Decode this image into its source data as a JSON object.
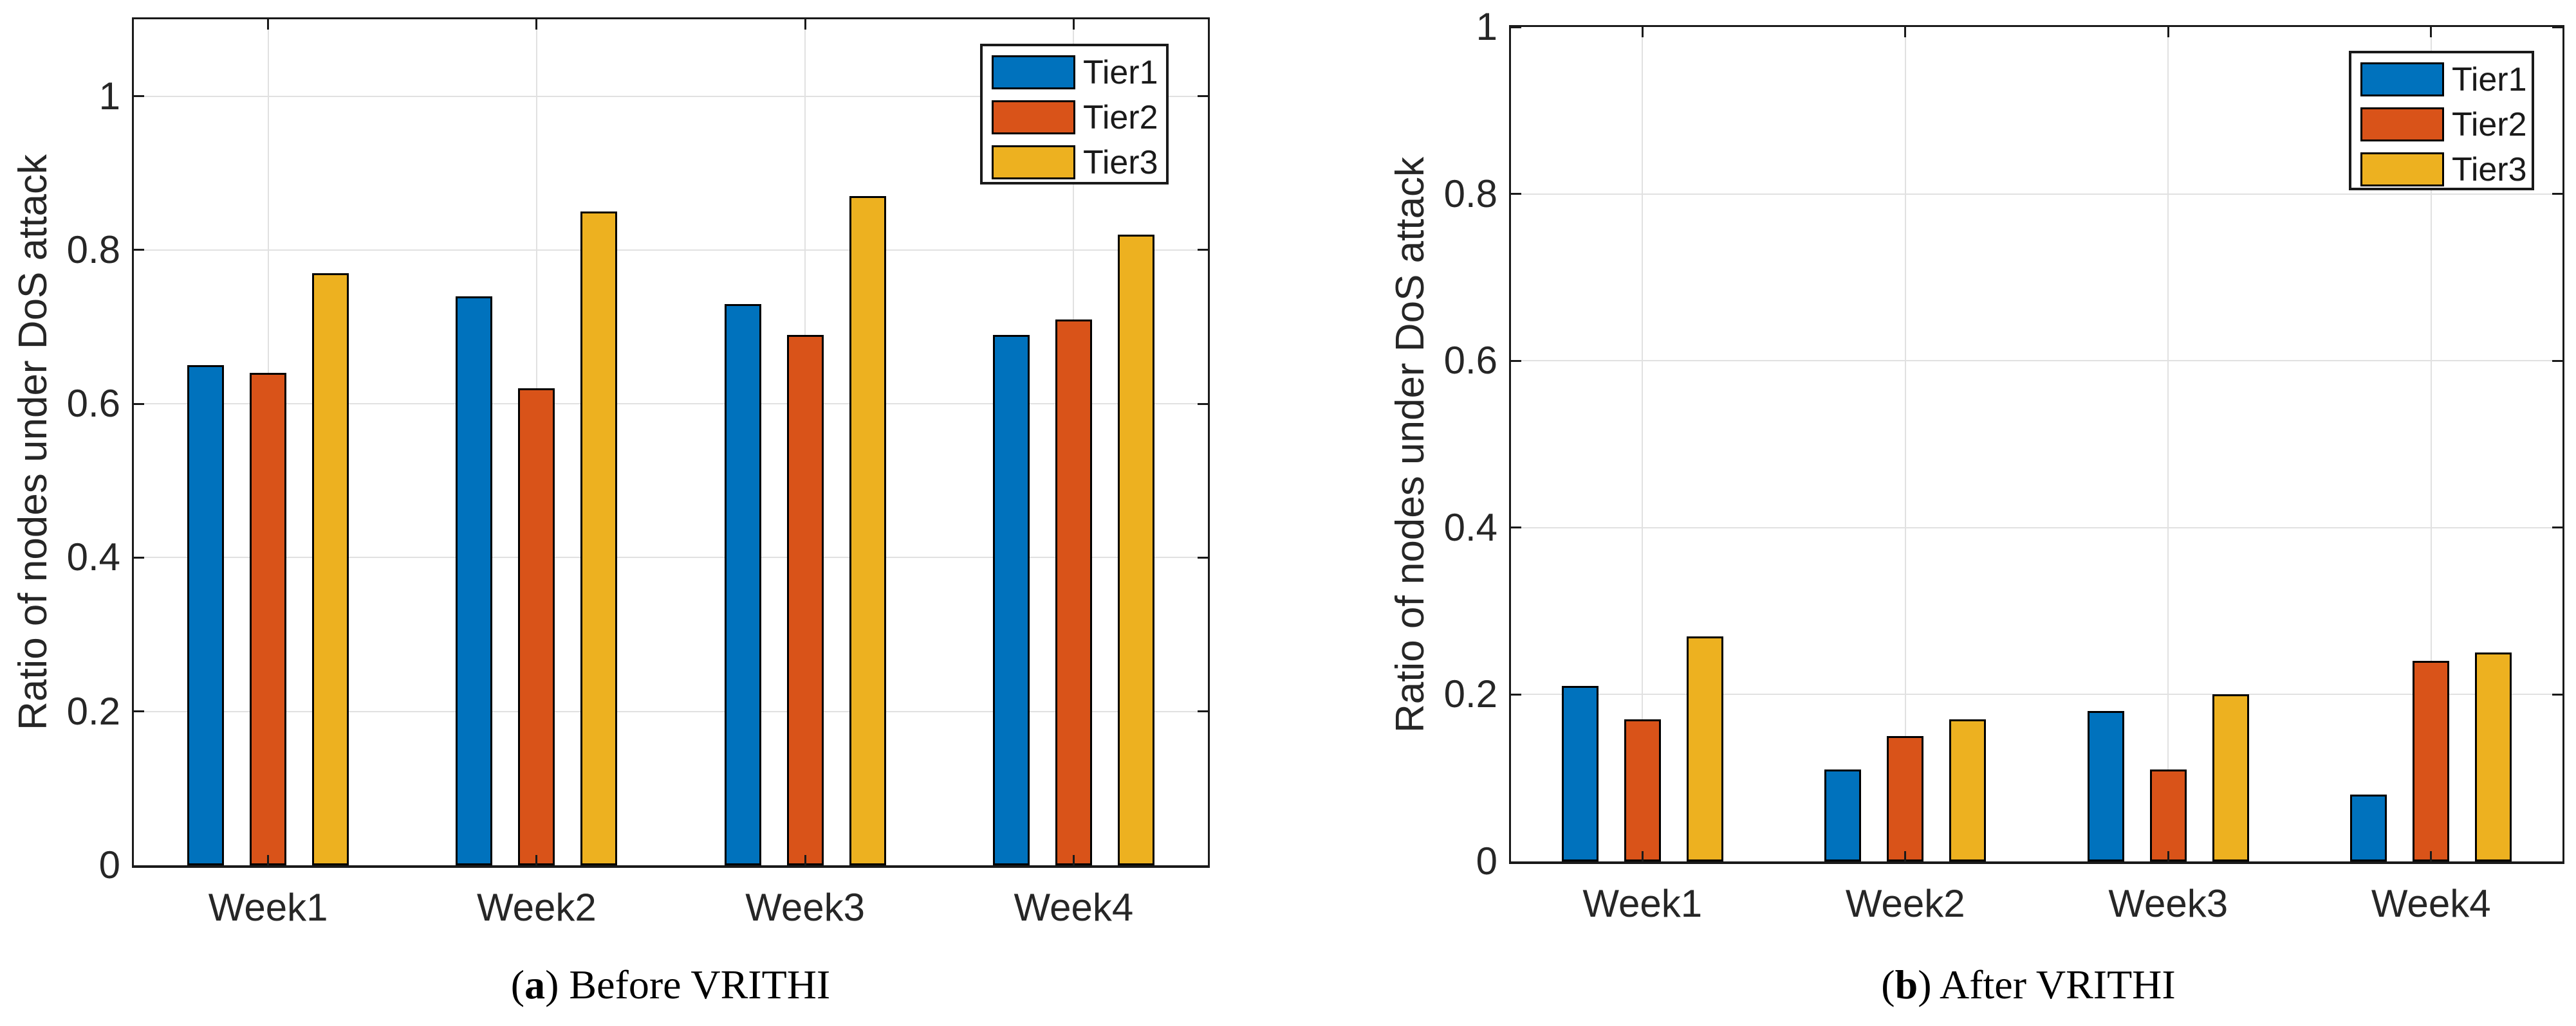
{
  "figure": {
    "background": "#ffffff",
    "axis_color": "#1a1a1a",
    "grid_color": "#e1e1e1",
    "tick_label_color": "#262626"
  },
  "chart_data": [
    {
      "id": "a",
      "type": "bar",
      "categories": [
        "Week1",
        "Week2",
        "Week3",
        "Week4"
      ],
      "series": [
        {
          "name": "Tier1",
          "color": "#0072BD",
          "values": [
            0.65,
            0.74,
            0.73,
            0.69
          ]
        },
        {
          "name": "Tier2",
          "color": "#D95319",
          "values": [
            0.64,
            0.62,
            0.69,
            0.71
          ]
        },
        {
          "name": "Tier3",
          "color": "#EDB120",
          "values": [
            0.77,
            0.85,
            0.87,
            0.82
          ]
        }
      ],
      "ylabel": "Ratio of nodes under DoS attack",
      "xlabel": "",
      "ylim": [
        0,
        1.1
      ],
      "yticks": [
        0,
        0.2,
        0.4,
        0.6,
        0.8,
        1
      ],
      "ytick_labels": [
        "0",
        "0.2",
        "0.4",
        "0.6",
        "0.8",
        "1"
      ],
      "grid": true,
      "legend": [
        "Tier1",
        "Tier2",
        "Tier3"
      ],
      "legend_position": "top-right",
      "caption": {
        "open": "(",
        "letter": "a",
        "close": ")",
        "text": "Before VRITHI"
      }
    },
    {
      "id": "b",
      "type": "bar",
      "categories": [
        "Week1",
        "Week2",
        "Week3",
        "Week4"
      ],
      "series": [
        {
          "name": "Tier1",
          "color": "#0072BD",
          "values": [
            0.21,
            0.11,
            0.18,
            0.08
          ]
        },
        {
          "name": "Tier2",
          "color": "#D95319",
          "values": [
            0.17,
            0.15,
            0.11,
            0.24
          ]
        },
        {
          "name": "Tier3",
          "color": "#EDB120",
          "values": [
            0.27,
            0.17,
            0.2,
            0.25
          ]
        }
      ],
      "ylabel": "Ratio of nodes under DoS attack",
      "xlabel": "",
      "ylim": [
        0,
        1
      ],
      "yticks": [
        0,
        0.2,
        0.4,
        0.6,
        0.8,
        1
      ],
      "ytick_labels": [
        "0",
        "0.2",
        "0.4",
        "0.6",
        "0.8",
        "1"
      ],
      "grid": true,
      "legend": [
        "Tier1",
        "Tier2",
        "Tier3"
      ],
      "legend_position": "top-right",
      "caption": {
        "open": "(",
        "letter": "b",
        "close": ")",
        "text": "After VRITHI"
      }
    }
  ]
}
